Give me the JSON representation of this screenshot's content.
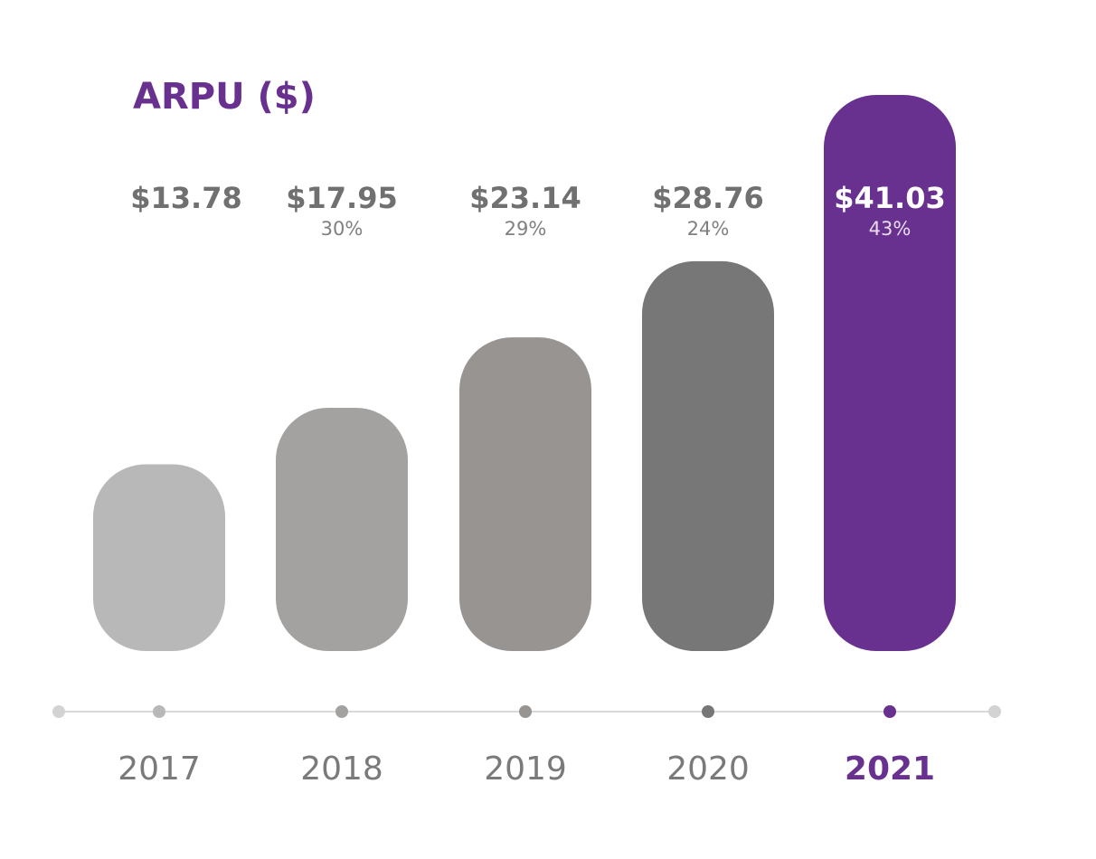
{
  "chart_data": {
    "type": "bar",
    "title": "ARPU ($)",
    "categories": [
      "2017",
      "2018",
      "2019",
      "2020",
      "2021"
    ],
    "values": [
      13.78,
      17.95,
      23.14,
      28.76,
      41.03
    ],
    "value_labels": [
      "$13.78",
      "$17.95",
      "$23.14",
      "$28.76",
      "$41.03"
    ],
    "growth_labels": [
      "",
      "30%",
      "29%",
      "24%",
      "43%"
    ],
    "ylim": [
      0,
      41.03
    ],
    "grid": false,
    "bar_shape": "rounded",
    "colors": [
      "#b8b8b8",
      "#a3a2a0",
      "#979492",
      "#777777",
      "#68308f"
    ],
    "highlight_index": 4,
    "highlight_color": "#68308f",
    "label_color": "#707070"
  }
}
